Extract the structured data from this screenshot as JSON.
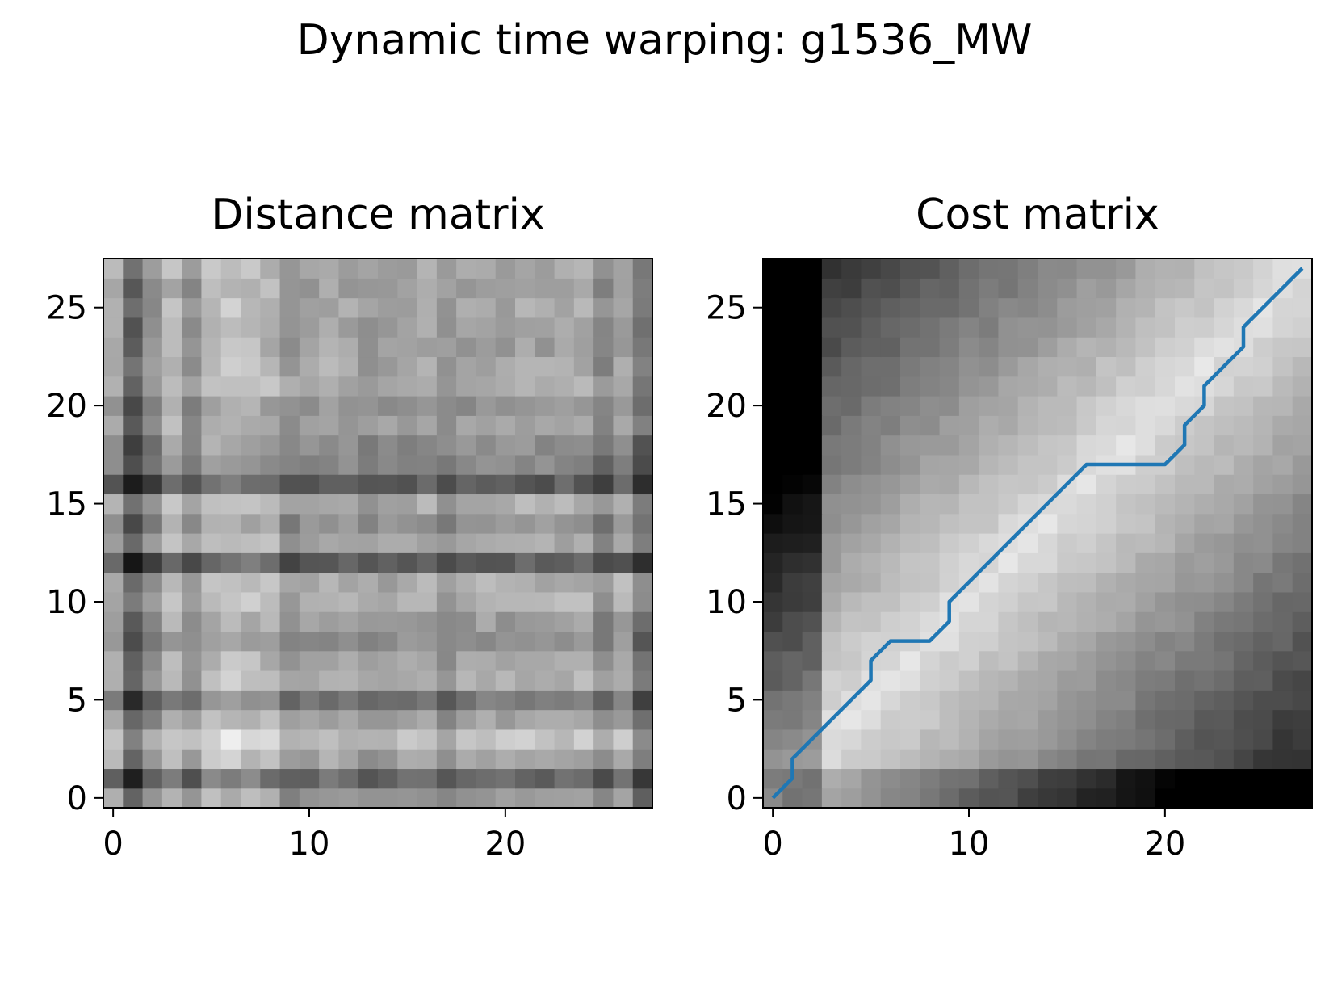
{
  "title": "Dynamic time warping: g1536_MW",
  "chart_data": [
    {
      "type": "heatmap",
      "title": "Distance matrix",
      "colormap": "gray_r",
      "size": 28,
      "xlim": [
        -0.5,
        27.5
      ],
      "ylim": [
        -0.5,
        27.5
      ],
      "xticks": [
        0,
        10,
        20
      ],
      "yticks": [
        0,
        5,
        10,
        15,
        20,
        25
      ],
      "row_profile": [
        0.45,
        0.85,
        0.35,
        0.15,
        0.4,
        0.75,
        0.3,
        0.4,
        0.55,
        0.45,
        0.3,
        0.3,
        0.95,
        0.35,
        0.5,
        0.3,
        0.95,
        0.6,
        0.55,
        0.4,
        0.5,
        0.3,
        0.35,
        0.4,
        0.4,
        0.35,
        0.4,
        0.35
      ],
      "col_profile": [
        0.3,
        0.85,
        0.5,
        0.2,
        0.45,
        0.15,
        0.1,
        0.15,
        0.2,
        0.45,
        0.35,
        0.3,
        0.35,
        0.45,
        0.4,
        0.35,
        0.3,
        0.45,
        0.35,
        0.3,
        0.35,
        0.3,
        0.35,
        0.3,
        0.3,
        0.55,
        0.3,
        0.7
      ]
    },
    {
      "type": "heatmap",
      "title": "Cost matrix",
      "colormap": "gray_r",
      "size": 28,
      "xlim": [
        -0.5,
        27.5
      ],
      "ylim": [
        -0.5,
        27.5
      ],
      "xticks": [
        0,
        10,
        20
      ],
      "yticks": [
        0,
        5,
        10,
        15,
        20,
        25
      ],
      "warping_path": {
        "color": "#1f77b4",
        "x": [
          0,
          1,
          1,
          2,
          3,
          4,
          5,
          5,
          6,
          7,
          8,
          9,
          9,
          10,
          11,
          12,
          13,
          14,
          15,
          16,
          17,
          18,
          19,
          20,
          21,
          21,
          22,
          22,
          23,
          24,
          24,
          25,
          26,
          27
        ],
        "y": [
          0,
          1,
          2,
          3,
          4,
          5,
          6,
          7,
          8,
          8,
          8,
          9,
          10,
          11,
          12,
          13,
          14,
          15,
          16,
          17,
          17,
          17,
          17,
          17,
          18,
          19,
          20,
          21,
          22,
          23,
          24,
          25,
          26,
          27
        ]
      }
    }
  ]
}
